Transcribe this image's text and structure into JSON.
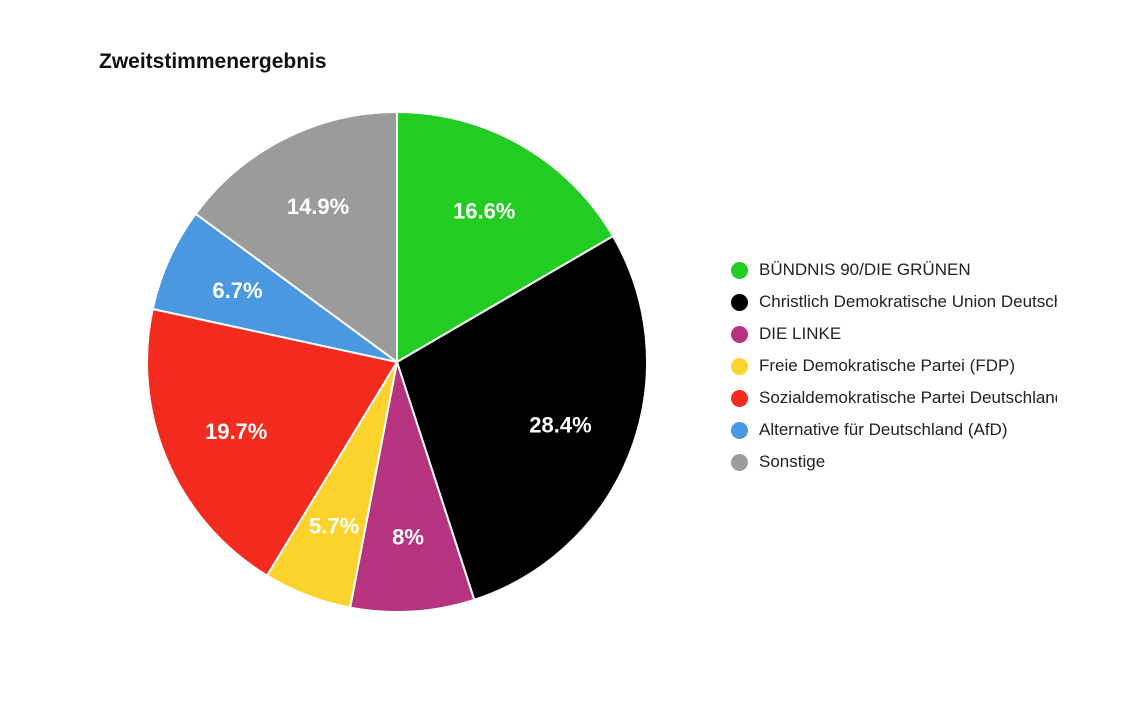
{
  "chart_data": {
    "type": "pie",
    "title": "Zweitstimmenergebnis",
    "categories": [
      "BÜNDNIS 90/DIE GRÜNEN",
      "Christlich Demokratische Union Deutschlands (CDU)",
      "DIE LINKE",
      "Freie Demokratische Partei (FDP)",
      "Sozialdemokratische Partei Deutschlands (SPD)",
      "Alternative für Deutschland (AfD)",
      "Sonstige"
    ],
    "values": [
      16.6,
      28.4,
      8,
      5.7,
      19.7,
      6.7,
      14.9
    ],
    "labels": [
      "16.6%",
      "28.4%",
      "8%",
      "5.7%",
      "19.7%",
      "6.7%",
      "14.9%"
    ],
    "colors": [
      "#22cc22",
      "#000000",
      "#b5337f",
      "#fcd22c",
      "#f32b1e",
      "#4a98e0",
      "#9b9b9b"
    ],
    "legend_position": "right"
  }
}
